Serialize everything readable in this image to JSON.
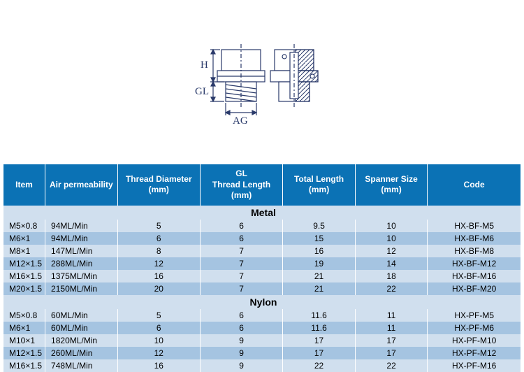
{
  "diagram": {
    "labels": {
      "h": "H",
      "gl": "GL",
      "ag": "AG"
    },
    "stroke": "#2a3a6a",
    "hatch": "#2a3a6a"
  },
  "table": {
    "header_bg": "#0b72b5",
    "header_color": "#ffffff",
    "row_light": "#d0dfee",
    "row_dark": "#a5c4e1",
    "columns": [
      {
        "key": "item",
        "label": "Item"
      },
      {
        "key": "air",
        "label": "Air permeability"
      },
      {
        "key": "thread_d",
        "label": "Thread Diameter\n(mm)"
      },
      {
        "key": "gl",
        "label": "GL\nThread Length\n(mm)"
      },
      {
        "key": "total",
        "label": "Total Length\n(mm)"
      },
      {
        "key": "spanner",
        "label": "Spanner Size\n(mm)"
      },
      {
        "key": "code",
        "label": "Code"
      }
    ],
    "sections": [
      {
        "title": "Metal",
        "rows": [
          {
            "item": "M5×0.8",
            "air": "94ML/Min",
            "thread_d": "5",
            "gl": "6",
            "total": "9.5",
            "spanner": "10",
            "code": "HX-BF-M5"
          },
          {
            "item": "M6×1",
            "air": "94ML/Min",
            "thread_d": "6",
            "gl": "6",
            "total": "15",
            "spanner": "10",
            "code": "HX-BF-M6"
          },
          {
            "item": "M8×1",
            "air": "147ML/Min",
            "thread_d": "8",
            "gl": "7",
            "total": "16",
            "spanner": "12",
            "code": "HX-BF-M8"
          },
          {
            "item": "M12×1.5",
            "air": "288ML/Min",
            "thread_d": "12",
            "gl": "7",
            "total": "19",
            "spanner": "14",
            "code": "HX-BF-M12"
          },
          {
            "item": "M16×1.5",
            "air": "1375ML/Min",
            "thread_d": "16",
            "gl": "7",
            "total": "21",
            "spanner": "18",
            "code": "HX-BF-M16"
          },
          {
            "item": "M20×1.5",
            "air": "2150ML/Min",
            "thread_d": "20",
            "gl": "7",
            "total": "21",
            "spanner": "22",
            "code": "HX-BF-M20"
          }
        ]
      },
      {
        "title": "Nylon",
        "rows": [
          {
            "item": "M5×0.8",
            "air": "60ML/Min",
            "thread_d": "5",
            "gl": "6",
            "total": "11.6",
            "spanner": "11",
            "code": "HX-PF-M5"
          },
          {
            "item": "M6×1",
            "air": "60ML/Min",
            "thread_d": "6",
            "gl": "6",
            "total": "11.6",
            "spanner": "11",
            "code": "HX-PF-M6"
          },
          {
            "item": "M10×1",
            "air": "1820ML/Min",
            "thread_d": "10",
            "gl": "9",
            "total": "17",
            "spanner": "17",
            "code": "HX-PF-M10"
          },
          {
            "item": "M12×1.5",
            "air": "260ML/Min",
            "thread_d": "12",
            "gl": "9",
            "total": "17",
            "spanner": "17",
            "code": "HX-PF-M12"
          },
          {
            "item": "M16×1.5",
            "air": "748ML/Min",
            "thread_d": "16",
            "gl": "9",
            "total": "22",
            "spanner": "22",
            "code": "HX-PF-M16"
          }
        ]
      }
    ]
  }
}
